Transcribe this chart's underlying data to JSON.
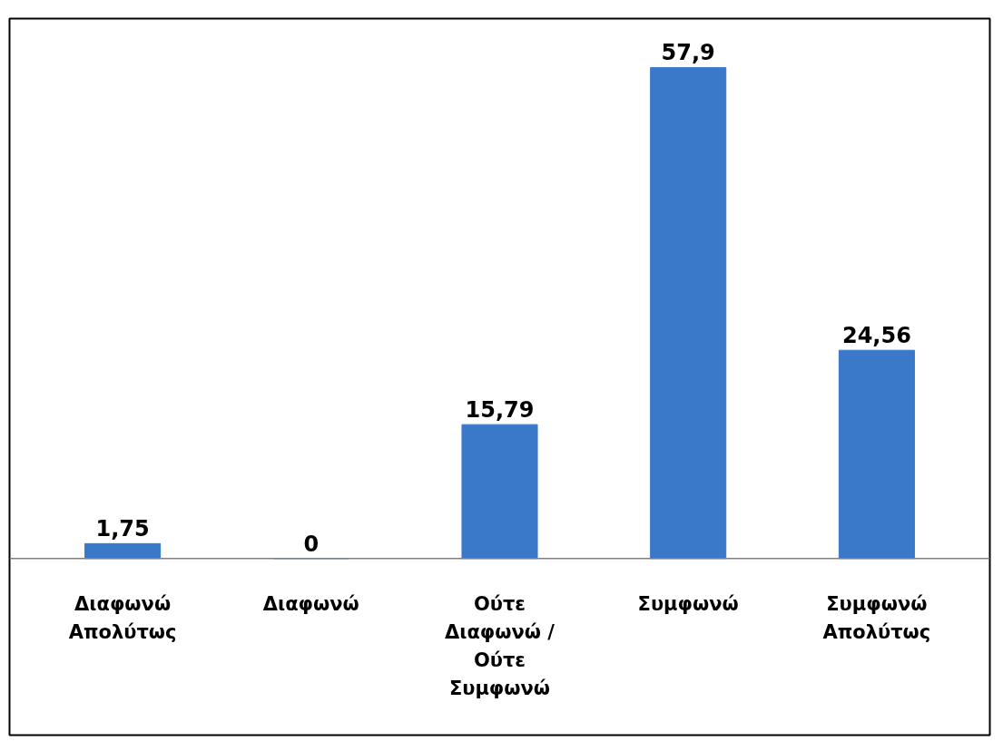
{
  "chart_data": {
    "type": "bar",
    "categories": [
      "Διαφωνώ Απολύτως",
      "Διαφωνώ",
      "Ούτε Διαφωνώ / Ούτε Συμφωνώ",
      "Συμφωνώ",
      "Συμφωνώ Απολύτως"
    ],
    "values": [
      1.75,
      0,
      15.79,
      57.9,
      24.56
    ],
    "value_labels": [
      "1,75",
      "0",
      "15,79",
      "57,9",
      "24,56"
    ],
    "color": "#3a78c9",
    "grid": false
  }
}
